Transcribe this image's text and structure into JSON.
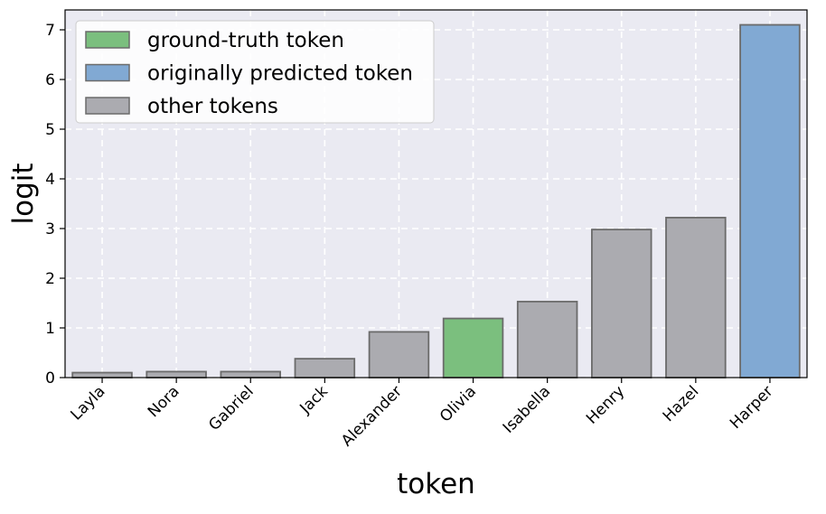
{
  "chart_data": {
    "type": "bar",
    "xlabel": "token",
    "ylabel": "logit",
    "ylim": [
      0,
      7.4
    ],
    "yticks": [
      0,
      1,
      2,
      3,
      4,
      5,
      6,
      7
    ],
    "grid": true,
    "legend_position": "top-left",
    "categories": [
      "Layla",
      "Nora",
      "Gabriel",
      "Jack",
      "Alexander",
      "Olivia",
      "Isabella",
      "Henry",
      "Hazel",
      "Harper"
    ],
    "values": [
      0.1,
      0.12,
      0.12,
      0.38,
      0.92,
      1.19,
      1.53,
      2.98,
      3.22,
      7.1
    ],
    "bar_roles": [
      "other",
      "other",
      "other",
      "other",
      "other",
      "ground_truth",
      "other",
      "other",
      "other",
      "predicted"
    ],
    "legend": [
      {
        "role": "ground_truth",
        "label": "ground-truth token",
        "color": "#7bbf7e"
      },
      {
        "role": "predicted",
        "label": "originally predicted token",
        "color": "#81a9d3"
      },
      {
        "role": "other",
        "label": "other tokens",
        "color": "#ababb0"
      }
    ],
    "colors": {
      "plot_background": "#eaeaf2",
      "grid": "#ffffff",
      "bar_edge": "#6b6b6b"
    }
  }
}
